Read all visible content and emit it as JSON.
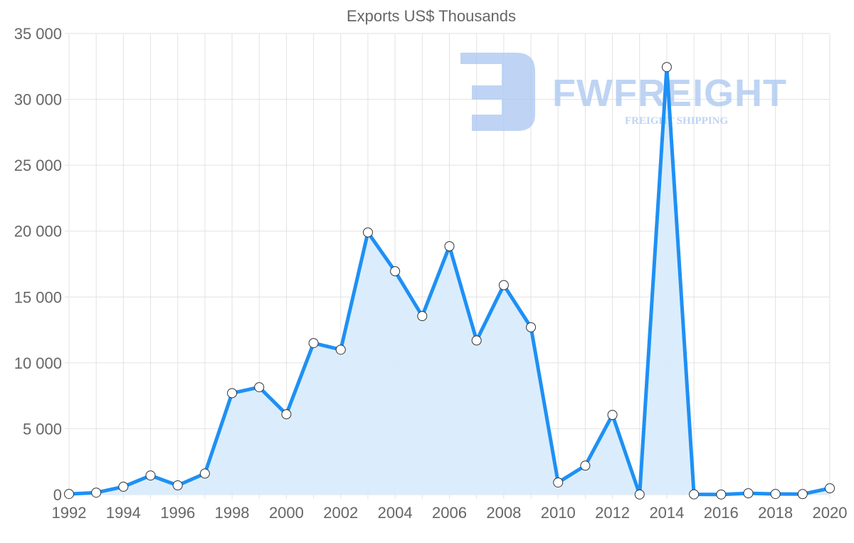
{
  "chart_data": {
    "type": "area",
    "title": "Exports US$ Thousands",
    "xlabel": "",
    "ylabel": "",
    "x": [
      1992,
      1993,
      1994,
      1995,
      1996,
      1997,
      1998,
      1999,
      2000,
      2001,
      2002,
      2003,
      2004,
      2005,
      2006,
      2007,
      2008,
      2009,
      2010,
      2011,
      2012,
      2013,
      2014,
      2015,
      2016,
      2017,
      2018,
      2019,
      2020
    ],
    "series": [
      {
        "name": "Exports US$ Thousands",
        "values": [
          50,
          150,
          600,
          1450,
          700,
          1600,
          7700,
          8150,
          6100,
          11500,
          11000,
          19900,
          16950,
          13550,
          18850,
          11700,
          15900,
          12700,
          920,
          2200,
          6050,
          10,
          32450,
          20,
          10,
          100,
          50,
          40,
          480
        ]
      }
    ],
    "xticks": [
      "1992",
      "1994",
      "1996",
      "1998",
      "2000",
      "2002",
      "2004",
      "2006",
      "2008",
      "2010",
      "2012",
      "2014",
      "2016",
      "2018",
      "2020"
    ],
    "yticks": [
      "0",
      "5 000",
      "10 000",
      "15 000",
      "20 000",
      "25 000",
      "30 000",
      "35 000"
    ],
    "ylim": [
      0,
      35000
    ],
    "xlim": [
      1992,
      2020
    ],
    "grid": true,
    "colors": {
      "line": "#1e90f5",
      "fill": "#d9ecfc",
      "grid": "#e2e2e2",
      "text": "#666666",
      "watermark": "#a9c6f0"
    }
  },
  "watermark": {
    "brand": "FWFREIGHT",
    "tagline": "FREIGHT SHIPPING"
  }
}
